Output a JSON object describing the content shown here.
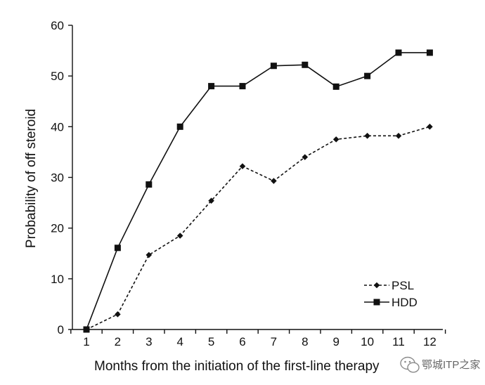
{
  "chart_data": {
    "type": "line",
    "xlabel": "Months from the initiation of the first-line therapy",
    "ylabel": "Probability of off steroid",
    "categories": [
      "1",
      "2",
      "3",
      "4",
      "5",
      "6",
      "7",
      "8",
      "9",
      "10",
      "11",
      "12"
    ],
    "ylim": [
      0,
      60
    ],
    "yticks": [
      0,
      10,
      20,
      30,
      40,
      50,
      60
    ],
    "grid": false,
    "legend_position": "bottom-right",
    "series": [
      {
        "name": "PSL",
        "marker": "diamond",
        "line": "dashed",
        "color": "#111111",
        "values": [
          0,
          3,
          14.7,
          18.5,
          25.4,
          32.2,
          29.3,
          34,
          37.5,
          38.2,
          38.2,
          40
        ]
      },
      {
        "name": "HDD",
        "marker": "square",
        "line": "solid",
        "color": "#111111",
        "values": [
          0,
          16.1,
          28.6,
          40,
          48,
          48,
          52,
          52.2,
          47.9,
          50,
          54.6,
          54.6
        ]
      }
    ]
  },
  "watermark": {
    "text": "鄂城ITP之家",
    "icon": "wechat-icon"
  }
}
